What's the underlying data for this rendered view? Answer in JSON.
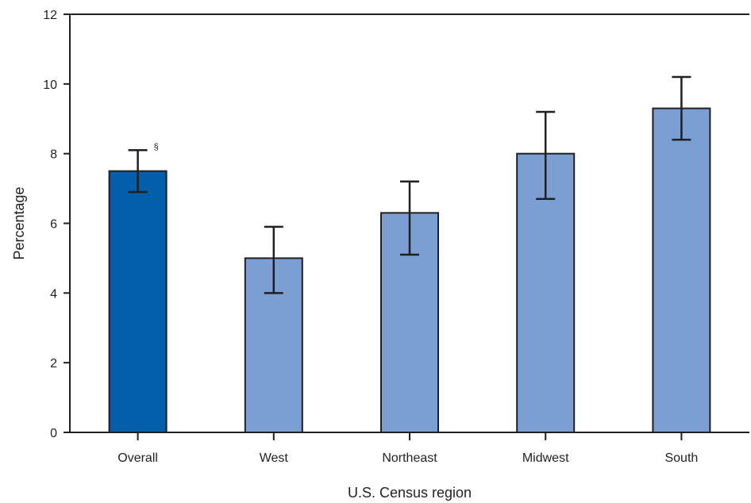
{
  "chart_data": {
    "type": "bar",
    "title": "",
    "xlabel": "U.S. Census region",
    "ylabel": "Percentage",
    "ylim": [
      0,
      12
    ],
    "yticks": [
      0,
      2,
      4,
      6,
      8,
      10,
      12
    ],
    "categories": [
      "Overall",
      "West",
      "Northeast",
      "Midwest",
      "South"
    ],
    "values": [
      7.5,
      5.0,
      6.3,
      8.0,
      9.3
    ],
    "error_low": [
      6.9,
      4.0,
      5.1,
      6.7,
      8.4
    ],
    "error_high": [
      8.1,
      5.9,
      7.2,
      9.2,
      10.2
    ],
    "bar_colors": [
      "#005eaa",
      "#7b9fd2",
      "#7b9fd2",
      "#7b9fd2",
      "#7b9fd2"
    ],
    "annotations": [
      {
        "category": "Overall",
        "text": "§"
      }
    ],
    "grid": false,
    "legend": "none"
  },
  "colors": {
    "axis": "#231f20",
    "bar_outline": "#231f20",
    "text": "#231f20"
  }
}
